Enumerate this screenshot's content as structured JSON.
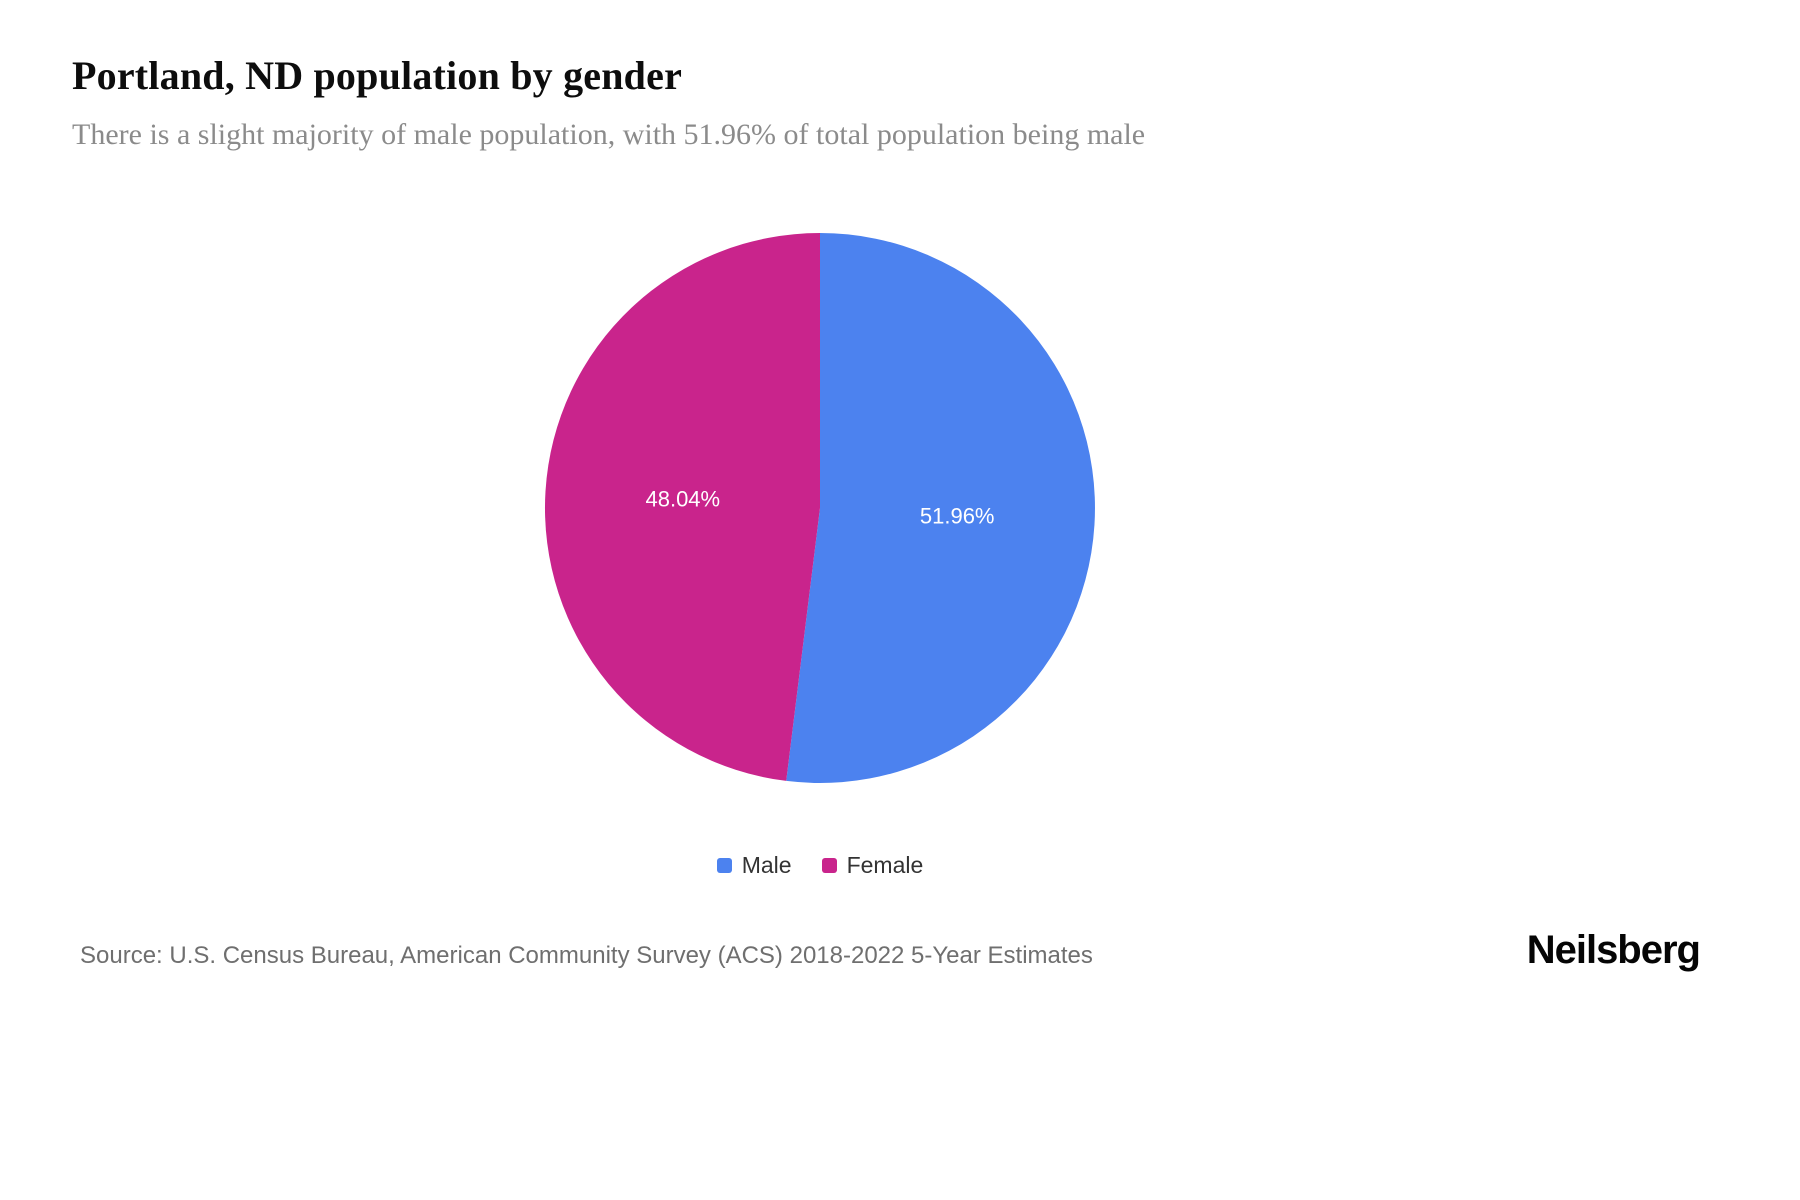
{
  "header": {
    "title": "Portland, ND population by gender",
    "subtitle": "There is a slight majority of male population, with 51.96% of total population being male"
  },
  "chart_data": {
    "type": "pie",
    "title": "Portland, ND population by gender",
    "start_angle_deg": 0,
    "direction": "clockwise",
    "legend_position": "bottom",
    "label_color": "#ffffff",
    "label_radius_ratio": 0.5,
    "series": [
      {
        "name": "Male",
        "value": 51.96,
        "label": "51.96%",
        "color": "#4C82EF"
      },
      {
        "name": "Female",
        "value": 48.04,
        "label": "48.04%",
        "color": "#C9248C"
      }
    ]
  },
  "footer": {
    "source": "Source: U.S. Census Bureau, American Community Survey (ACS) 2018-2022 5-Year Estimates",
    "brand": "Neilsberg"
  }
}
